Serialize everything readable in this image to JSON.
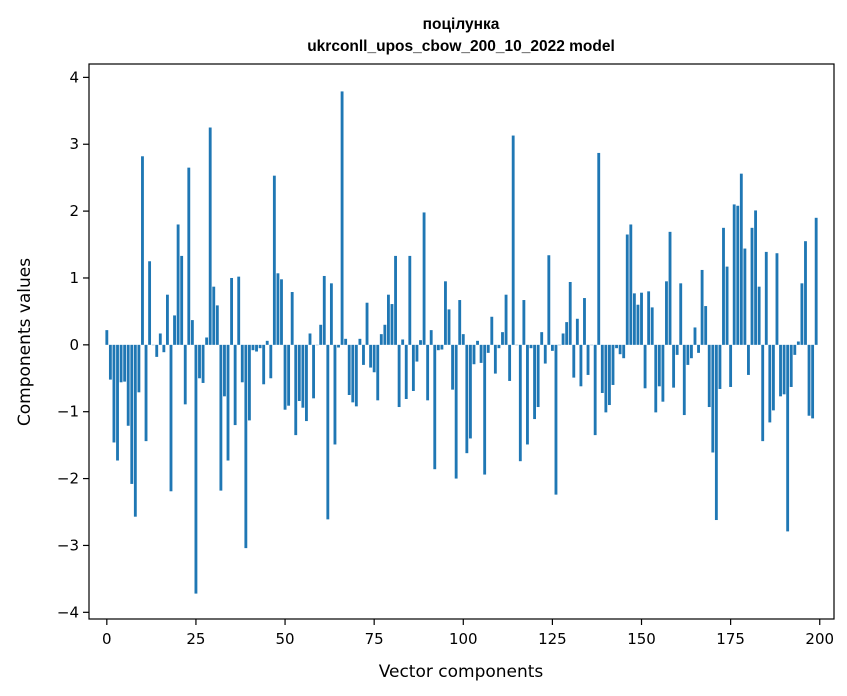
{
  "chart_data": {
    "type": "bar",
    "title_lines": [
      "поцілунка",
      "ukrconll_upos_cbow_200_10_2022 model"
    ],
    "xlabel": "Vector components",
    "ylabel": "Components values",
    "xlim": [
      -5,
      204
    ],
    "ylim": [
      -4.1,
      4.2
    ],
    "xticks": [
      0,
      25,
      50,
      75,
      100,
      125,
      150,
      175,
      200
    ],
    "xtick_labels": [
      "0",
      "25",
      "50",
      "75",
      "100",
      "125",
      "150",
      "175",
      "200"
    ],
    "yticks": [
      -4,
      -3,
      -2,
      -1,
      0,
      1,
      2,
      3,
      4
    ],
    "ytick_labels": [
      "−4",
      "−3",
      "−2",
      "−1",
      "0",
      "1",
      "2",
      "3",
      "4"
    ],
    "bar_color": "#1f77b4",
    "grid": false,
    "values": [
      0.22,
      -0.52,
      -1.46,
      -1.73,
      -0.56,
      -0.55,
      -1.21,
      -2.08,
      -2.57,
      -0.71,
      2.82,
      -1.44,
      1.25,
      0.0,
      -0.18,
      0.17,
      -0.11,
      0.75,
      -2.19,
      0.44,
      1.8,
      1.33,
      -0.89,
      2.65,
      0.37,
      -3.72,
      -0.5,
      -0.57,
      0.11,
      3.25,
      0.87,
      0.59,
      -2.18,
      -0.77,
      -1.73,
      1.0,
      -1.2,
      1.02,
      -0.56,
      -3.04,
      -1.13,
      -0.08,
      -0.1,
      -0.05,
      -0.59,
      0.06,
      -0.5,
      2.53,
      1.07,
      0.98,
      -0.97,
      -0.91,
      0.79,
      -1.35,
      -0.84,
      -0.94,
      -1.14,
      0.17,
      -0.8,
      0.0,
      0.3,
      1.03,
      -2.61,
      0.92,
      -1.49,
      -0.04,
      3.79,
      0.09,
      -0.75,
      -0.86,
      -0.92,
      0.09,
      -0.3,
      0.63,
      -0.34,
      -0.41,
      -0.83,
      0.16,
      0.3,
      0.75,
      0.61,
      1.33,
      -0.93,
      0.08,
      -0.81,
      1.33,
      -0.69,
      -0.25,
      0.07,
      1.98,
      -0.83,
      0.22,
      -1.86,
      -0.08,
      -0.07,
      0.95,
      0.53,
      -0.67,
      -2.0,
      0.67,
      0.16,
      -1.62,
      -1.4,
      -0.29,
      0.06,
      -0.27,
      -1.94,
      -0.12,
      0.42,
      -0.43,
      -0.05,
      0.19,
      0.75,
      -0.54,
      3.13,
      0.0,
      -1.74,
      0.67,
      -1.49,
      -0.05,
      -1.11,
      -0.93,
      0.19,
      -0.28,
      1.34,
      -0.09,
      -2.24,
      0.0,
      0.17,
      0.34,
      0.94,
      -0.49,
      0.39,
      -0.62,
      0.7,
      -0.45,
      0.0,
      -1.35,
      2.87,
      -0.72,
      -1.01,
      -0.9,
      -0.6,
      -0.05,
      -0.14,
      -0.2,
      1.65,
      1.8,
      0.77,
      0.6,
      0.78,
      -0.65,
      0.8,
      0.56,
      -1.01,
      -0.62,
      -0.85,
      0.95,
      1.69,
      -0.64,
      -0.15,
      0.92,
      -1.05,
      -0.3,
      -0.2,
      0.26,
      -0.12,
      1.12,
      0.58,
      -0.93,
      -1.61,
      -2.62,
      -0.66,
      1.75,
      1.17,
      -0.63,
      2.1,
      2.08,
      2.56,
      1.44,
      -0.45,
      1.75,
      2.01,
      0.87,
      -1.44,
      1.39,
      -1.16,
      -0.98,
      1.37,
      -0.77,
      -0.74,
      -2.79,
      -0.63,
      -0.15,
      0.05,
      0.92,
      1.55,
      -1.06,
      -1.1,
      1.9
    ]
  }
}
